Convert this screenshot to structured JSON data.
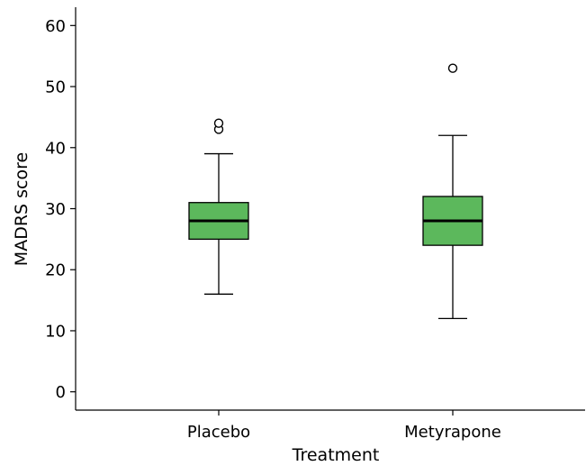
{
  "chart_data": {
    "type": "boxplot",
    "xlabel": "Treatment",
    "ylabel": "MADRS score",
    "ylim": [
      -3,
      63
    ],
    "yticks": [
      0,
      10,
      20,
      30,
      40,
      50,
      60
    ],
    "categories": [
      "Placebo",
      "Metyrapone"
    ],
    "grid": false,
    "legend": "none",
    "box_color": "#5cb85c",
    "boxes": [
      {
        "category": "Placebo",
        "whisker_low": 16,
        "q1": 25,
        "median": 28,
        "q3": 31,
        "whisker_high": 39,
        "outliers": [
          43,
          44
        ]
      },
      {
        "category": "Metyrapone",
        "whisker_low": 12,
        "q1": 24,
        "median": 28,
        "q3": 32,
        "whisker_high": 42,
        "outliers": [
          53
        ]
      }
    ]
  }
}
